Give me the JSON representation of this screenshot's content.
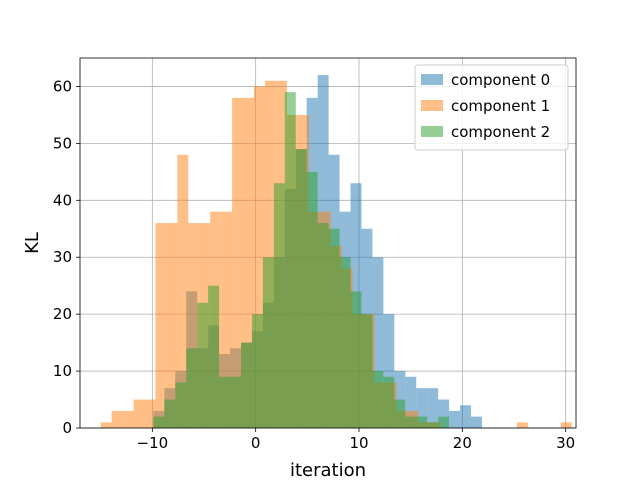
{
  "chart_data": {
    "type": "histogram",
    "title": "",
    "xlabel": "iteration",
    "ylabel": "KL",
    "xlim": [
      -17,
      31
    ],
    "ylim": [
      0,
      65
    ],
    "xticks": [
      -10,
      0,
      10,
      20,
      30
    ],
    "yticks": [
      0,
      10,
      20,
      30,
      40,
      50,
      60
    ],
    "grid": true,
    "legend_position": "top-right",
    "bin_width": 1.06,
    "bin_start": -9.9,
    "series": [
      {
        "name": "component 0",
        "color": "#1f77b4",
        "alpha": 0.5,
        "bin_start": -9.9,
        "values": [
          3,
          7,
          10,
          24,
          14,
          18,
          13,
          14,
          15,
          17,
          22,
          30,
          42,
          49,
          58,
          62,
          48,
          38,
          43,
          35,
          30,
          20,
          10,
          9,
          7,
          7,
          5,
          3,
          4,
          2
        ]
      },
      {
        "name": "component 1",
        "color": "#ff7f0e",
        "alpha": 0.5,
        "bin_start": -15.0,
        "values": [
          1,
          3,
          3,
          5,
          5,
          36,
          36,
          48,
          36,
          36,
          38,
          38,
          58,
          58,
          60,
          61,
          61,
          55,
          55,
          38,
          38,
          32,
          28,
          20,
          20,
          8,
          8,
          3,
          3,
          1,
          1,
          0,
          0,
          0,
          0,
          0,
          0,
          0,
          1,
          0,
          0,
          0,
          1
        ]
      },
      {
        "name": "component 2",
        "color": "#2ca02c",
        "alpha": 0.5,
        "bin_start": -9.9,
        "values": [
          2,
          5,
          8,
          14,
          22,
          25,
          9,
          9,
          15,
          20,
          30,
          43,
          59,
          49,
          45,
          36,
          35,
          30,
          24,
          20,
          10,
          9,
          5,
          2,
          2,
          1,
          2,
          0
        ]
      }
    ]
  }
}
